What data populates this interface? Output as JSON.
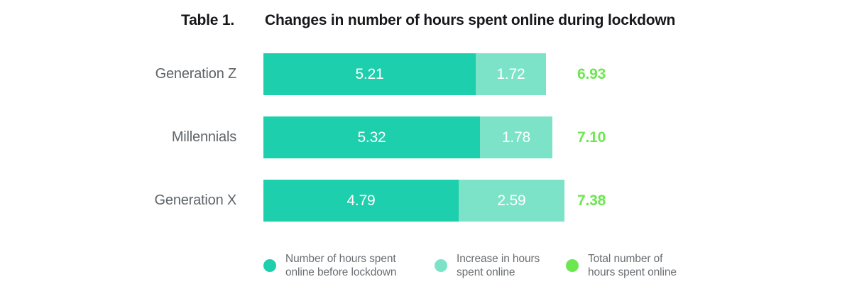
{
  "header": {
    "table_label": "Table 1.",
    "title": "Changes in number of hours spent online during lockdown"
  },
  "chart_data": {
    "type": "bar",
    "orientation": "horizontal",
    "stacked": true,
    "unit": "hours",
    "title": "Changes in number of hours spent online during lockdown",
    "categories": [
      "Generation Z",
      "Millennials",
      "Generation X"
    ],
    "series": [
      {
        "name": "Number of hours spent online before lockdown",
        "values": [
          5.21,
          5.32,
          4.79
        ],
        "color": "#1DCFAC"
      },
      {
        "name": "Increase in hours spent online",
        "values": [
          1.72,
          1.78,
          2.59
        ],
        "color": "#7DE3C8"
      },
      {
        "name": "Total number of hours spent online",
        "values": [
          6.93,
          7.1,
          7.38
        ],
        "color": "#6CE750"
      }
    ],
    "rows": [
      {
        "label": "Generation Z",
        "before": "5.21",
        "increase": "1.72",
        "total": "6.93"
      },
      {
        "label": "Millennials",
        "before": "5.32",
        "increase": "1.78",
        "total": "7.10"
      },
      {
        "label": "Generation X",
        "before": "4.79",
        "increase": "2.59",
        "total": "7.38"
      }
    ],
    "legend": [
      {
        "lines": [
          "Number of hours spent",
          "online before lockdown"
        ],
        "color": "#1DCFAC"
      },
      {
        "lines": [
          "Increase in hours",
          "spent online"
        ],
        "color": "#7DE3C8"
      },
      {
        "lines": [
          "Total number of",
          "hours spent online"
        ],
        "color": "#6CE750"
      }
    ],
    "colors": {
      "before_lockdown": "#1DCFAC",
      "increase": "#7DE3C8",
      "total_text": "#6CE750",
      "category_label": "#5F6468",
      "title_text": "#17171B",
      "bar_value_text": "#FFFFFF"
    },
    "layout_hints": {
      "legend_position": "bottom",
      "grid": false,
      "axes_shown": false
    }
  }
}
